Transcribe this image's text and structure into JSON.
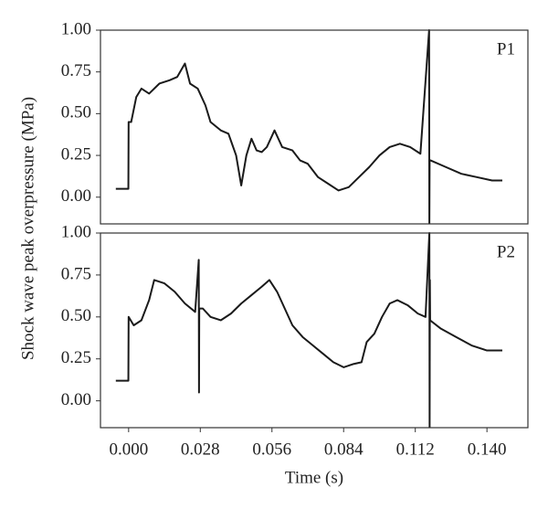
{
  "chart_data": [
    {
      "type": "line",
      "ylabel": "Shock wave peak overpressure (MPa)",
      "x": [
        -0.005,
        -0.002,
        -0.0001,
        0,
        0.001,
        0.003,
        0.005,
        0.008,
        0.012,
        0.016,
        0.019,
        0.022,
        0.024,
        0.027,
        0.03,
        0.032,
        0.036,
        0.039,
        0.042,
        0.044,
        0.046,
        0.048,
        0.05,
        0.052,
        0.054,
        0.057,
        0.06,
        0.064,
        0.067,
        0.07,
        0.074,
        0.078,
        0.082,
        0.086,
        0.09,
        0.094,
        0.098,
        0.102,
        0.106,
        0.11,
        0.114,
        0.1174,
        0.1175,
        0.1176,
        0.118,
        0.124,
        0.13,
        0.136,
        0.142,
        0.146
      ],
      "series": [
        {
          "name": "P1",
          "color": "#1a1a1a",
          "values": [
            0.05,
            0.05,
            0.05,
            0.45,
            0.45,
            0.6,
            0.65,
            0.62,
            0.68,
            0.7,
            0.72,
            0.8,
            0.68,
            0.65,
            0.55,
            0.45,
            0.4,
            0.38,
            0.25,
            0.07,
            0.25,
            0.35,
            0.28,
            0.27,
            0.3,
            0.4,
            0.3,
            0.28,
            0.22,
            0.2,
            0.12,
            0.08,
            0.04,
            0.06,
            0.12,
            0.18,
            0.25,
            0.3,
            0.32,
            0.3,
            0.26,
            1.0,
            -0.16,
            0.22,
            0.22,
            0.18,
            0.14,
            0.12,
            0.1,
            0.1
          ]
        }
      ],
      "xlim": [
        -0.011,
        0.156
      ],
      "ylim": [
        -0.16,
        1.0
      ],
      "yticks": [
        {
          "value": 0,
          "label": "0.00"
        },
        {
          "value": 0.25,
          "label": "0.25"
        },
        {
          "value": 0.5,
          "label": "0.50"
        },
        {
          "value": 0.75,
          "label": "0.75"
        },
        {
          "value": 1,
          "label": "1.00"
        }
      ]
    },
    {
      "type": "line",
      "xlabel": "Time (s)",
      "x": [
        -0.005,
        -0.002,
        -0.0001,
        0,
        0.002,
        0.005,
        0.008,
        0.01,
        0.014,
        0.018,
        0.022,
        0.026,
        0.0274,
        0.0275,
        0.0276,
        0.029,
        0.032,
        0.036,
        0.04,
        0.044,
        0.048,
        0.052,
        0.055,
        0.058,
        0.061,
        0.064,
        0.068,
        0.072,
        0.076,
        0.08,
        0.084,
        0.088,
        0.091,
        0.093,
        0.096,
        0.099,
        0.102,
        0.105,
        0.109,
        0.113,
        0.116,
        0.1175,
        0.1176,
        0.1177,
        0.1178,
        0.122,
        0.128,
        0.134,
        0.14,
        0.146
      ],
      "series": [
        {
          "name": "P2",
          "color": "#1a1a1a",
          "values": [
            0.12,
            0.12,
            0.12,
            0.5,
            0.45,
            0.48,
            0.6,
            0.72,
            0.7,
            0.65,
            0.58,
            0.53,
            0.84,
            0.05,
            0.55,
            0.55,
            0.5,
            0.48,
            0.52,
            0.58,
            0.63,
            0.68,
            0.72,
            0.65,
            0.55,
            0.45,
            0.38,
            0.33,
            0.28,
            0.23,
            0.2,
            0.22,
            0.23,
            0.35,
            0.4,
            0.5,
            0.58,
            0.6,
            0.57,
            0.52,
            0.5,
            1.0,
            -0.16,
            0.72,
            0.48,
            0.43,
            0.38,
            0.33,
            0.3,
            0.3
          ]
        }
      ],
      "xlim": [
        -0.011,
        0.156
      ],
      "xticks": [
        {
          "value": 0,
          "label": "0.000"
        },
        0.028,
        0.056,
        0.084,
        0.112,
        {
          "value": 0.14,
          "label": "0.140"
        }
      ],
      "ylim": [
        -0.16,
        1.0
      ],
      "yticks": [
        {
          "value": 0,
          "label": "0.00"
        },
        {
          "value": 0.25,
          "label": "0.25"
        },
        {
          "value": 0.5,
          "label": "0.50"
        },
        {
          "value": 0.75,
          "label": "0.75"
        },
        {
          "value": 1,
          "label": "1.00"
        }
      ]
    }
  ]
}
